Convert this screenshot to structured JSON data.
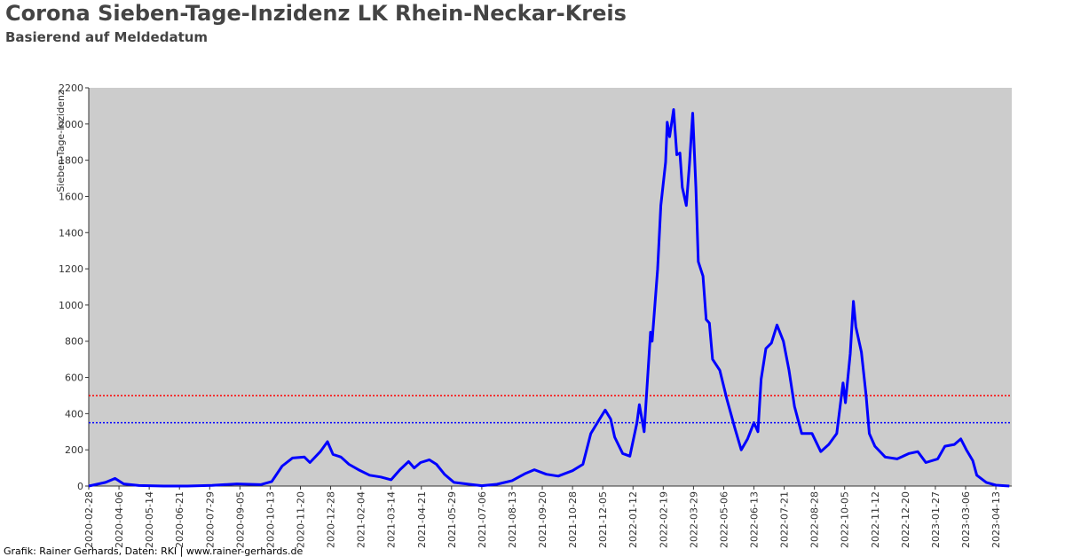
{
  "chart_data": {
    "type": "line",
    "title": "Corona Sieben-Tage-Inzidenz LK Rhein-Neckar-Kreis",
    "subtitle": "Basierend auf Meldedatum",
    "y_label": "Sieben-Tage-Inzidenz",
    "footer": "Grafik: Rainer Gerhards, Daten: RKI | www.rainer-gerhards.de",
    "color": "#0000ff",
    "background": "#cccccc",
    "xlim": [
      "2020-02-28",
      "2023-05-03"
    ],
    "xticks": [
      "2020-02-28",
      "2020-04-06",
      "2020-05-14",
      "2020-06-21",
      "2020-07-29",
      "2020-09-05",
      "2020-10-13",
      "2020-11-20",
      "2020-12-28",
      "2021-02-04",
      "2021-03-14",
      "2021-04-21",
      "2021-05-29",
      "2021-07-06",
      "2021-08-13",
      "2021-09-20",
      "2021-10-28",
      "2021-12-05",
      "2022-01-12",
      "2022-02-19",
      "2022-03-29",
      "2022-05-06",
      "2022-06-13",
      "2022-07-21",
      "2022-08-28",
      "2022-10-05",
      "2022-11-12",
      "2022-12-20",
      "2023-01-27",
      "2023-03-06",
      "2023-04-13"
    ],
    "ylim": [
      0,
      2200
    ],
    "yticks": [
      0,
      200,
      400,
      600,
      800,
      1000,
      1200,
      1400,
      1600,
      1800,
      2000,
      2200
    ],
    "reference_lines": [
      {
        "value": 500,
        "color": "#ff0000"
      },
      {
        "value": 350,
        "color": "#0000ff"
      }
    ],
    "x": [
      "2020-02-28",
      "2020-03-20",
      "2020-04-01",
      "2020-04-12",
      "2020-05-01",
      "2020-06-01",
      "2020-07-01",
      "2020-08-01",
      "2020-09-01",
      "2020-10-01",
      "2020-10-15",
      "2020-10-28",
      "2020-11-10",
      "2020-11-25",
      "2020-12-02",
      "2020-12-15",
      "2020-12-24",
      "2020-12-31",
      "2021-01-10",
      "2021-01-20",
      "2021-02-01",
      "2021-02-15",
      "2021-03-01",
      "2021-03-14",
      "2021-03-25",
      "2021-04-05",
      "2021-04-12",
      "2021-04-20",
      "2021-05-01",
      "2021-05-10",
      "2021-05-20",
      "2021-06-01",
      "2021-06-20",
      "2021-07-06",
      "2021-07-25",
      "2021-08-13",
      "2021-08-30",
      "2021-09-10",
      "2021-09-25",
      "2021-10-10",
      "2021-10-28",
      "2021-11-10",
      "2021-11-20",
      "2021-12-01",
      "2021-12-08",
      "2021-12-15",
      "2021-12-20",
      "2021-12-30",
      "2022-01-08",
      "2022-01-17",
      "2022-01-20",
      "2022-01-26",
      "2022-02-03",
      "2022-02-05",
      "2022-02-12",
      "2022-02-16",
      "2022-02-22",
      "2022-02-24",
      "2022-02-27",
      "2022-03-04",
      "2022-03-08",
      "2022-03-12",
      "2022-03-15",
      "2022-03-20",
      "2022-03-24",
      "2022-03-28",
      "2022-04-01",
      "2022-04-04",
      "2022-04-10",
      "2022-04-14",
      "2022-04-18",
      "2022-04-22",
      "2022-05-01",
      "2022-05-10",
      "2022-05-20",
      "2022-05-28",
      "2022-06-05",
      "2022-06-13",
      "2022-06-18",
      "2022-06-22",
      "2022-06-28",
      "2022-07-05",
      "2022-07-12",
      "2022-07-20",
      "2022-07-27",
      "2022-08-03",
      "2022-08-12",
      "2022-08-25",
      "2022-09-05",
      "2022-09-15",
      "2022-09-25",
      "2022-10-03",
      "2022-10-06",
      "2022-10-12",
      "2022-10-16",
      "2022-10-19",
      "2022-10-26",
      "2022-11-01",
      "2022-11-05",
      "2022-11-12",
      "2022-11-25",
      "2022-12-10",
      "2022-12-25",
      "2023-01-05",
      "2023-01-15",
      "2023-01-30",
      "2023-02-08",
      "2023-02-20",
      "2023-02-28",
      "2023-03-07",
      "2023-03-15",
      "2023-03-20",
      "2023-04-01",
      "2023-04-13",
      "2023-04-30"
    ],
    "values": [
      0,
      20,
      42,
      12,
      3,
      0,
      0,
      4,
      12,
      8,
      25,
      110,
      155,
      160,
      130,
      190,
      245,
      175,
      160,
      120,
      90,
      60,
      50,
      35,
      90,
      135,
      100,
      130,
      145,
      120,
      65,
      20,
      10,
      2,
      10,
      30,
      70,
      90,
      65,
      55,
      85,
      120,
      290,
      370,
      420,
      370,
      270,
      180,
      165,
      350,
      450,
      300,
      850,
      800,
      1200,
      1550,
      1790,
      2010,
      1930,
      2080,
      1830,
      1840,
      1650,
      1550,
      1780,
      2060,
      1650,
      1240,
      1160,
      920,
      900,
      700,
      640,
      480,
      320,
      200,
      260,
      350,
      300,
      590,
      760,
      790,
      890,
      800,
      640,
      440,
      290,
      290,
      190,
      230,
      290,
      570,
      460,
      730,
      1020,
      880,
      740,
      500,
      290,
      220,
      160,
      150,
      180,
      190,
      130,
      150,
      220,
      230,
      260,
      200,
      140,
      60,
      20,
      5,
      0
    ]
  }
}
